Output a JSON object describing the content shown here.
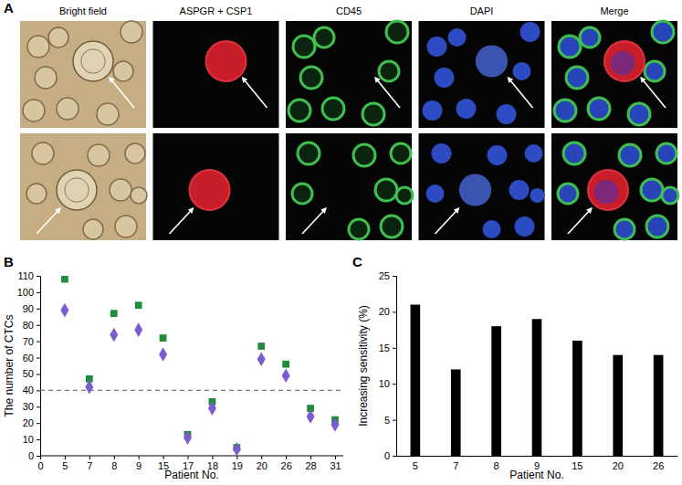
{
  "chart_data": [
    {
      "type": "image",
      "panel": "A",
      "columns": [
        "Bright field",
        "ASPGR + CSP1",
        "CD45",
        "DAPI",
        "Merge"
      ]
    },
    {
      "type": "scatter",
      "panel": "B",
      "x_label": "Patient No.",
      "y_label": "The number of CTCs",
      "categories": [
        "0",
        "5",
        "7",
        "8",
        "9",
        "15",
        "17",
        "18",
        "19",
        "20",
        "26",
        "28",
        "31"
      ],
      "series": [
        {
          "color": "#1e8c3a",
          "marker": "square",
          "values": [
            null,
            108,
            47,
            87,
            92,
            72,
            13,
            33,
            5,
            67,
            56,
            29,
            22
          ]
        },
        {
          "color": "#7a5cd0",
          "marker": "diamond",
          "values": [
            null,
            89,
            42,
            74,
            77,
            62,
            11,
            29,
            4,
            59,
            49,
            24,
            19
          ]
        }
      ],
      "threshold": 40,
      "ylim": [
        0,
        110
      ],
      "yticks": [
        0,
        10,
        20,
        30,
        40,
        50,
        60,
        70,
        80,
        90,
        100,
        110
      ]
    },
    {
      "type": "bar",
      "panel": "C",
      "x_label": "Patient No.",
      "y_label": "Increasing sensitivity (%)",
      "categories": [
        "5",
        "7",
        "8",
        "9",
        "15",
        "20",
        "26"
      ],
      "values": [
        21,
        12,
        18,
        19,
        16,
        14,
        14
      ],
      "color": "#000000",
      "ylim": [
        0,
        25
      ],
      "yticks": [
        0,
        5,
        10,
        15,
        20,
        25
      ]
    }
  ]
}
